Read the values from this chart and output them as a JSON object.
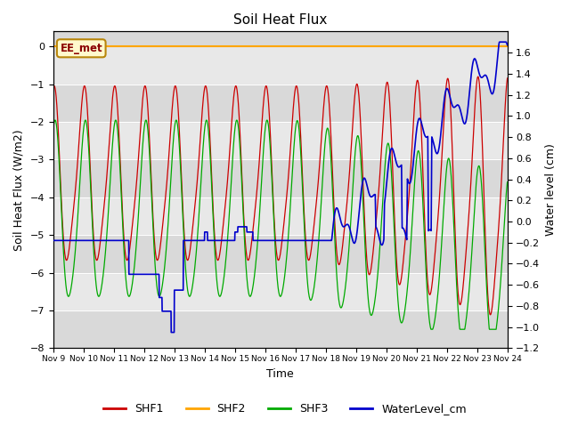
{
  "title": "Soil Heat Flux",
  "ylabel_left": "Soil Heat Flux (W/m2)",
  "ylabel_right": "Water level (cm)",
  "xlabel": "Time",
  "ylim_left": [
    -8.0,
    0.4
  ],
  "ylim_right": [
    -1.2,
    1.8
  ],
  "annotation_text": "EE_met",
  "background_color": "#ffffff",
  "plot_bg_color": "#e8e8e8",
  "shf2_color": "#ffa500",
  "shf1_color": "#cc0000",
  "shf3_color": "#00aa00",
  "water_color": "#0000cc",
  "legend_entries": [
    "SHF1",
    "SHF2",
    "SHF3",
    "WaterLevel_cm"
  ],
  "xtick_labels": [
    "Nov 9",
    "Nov 10",
    "Nov 11",
    "Nov 12",
    "Nov 13",
    "Nov 14",
    "Nov 15",
    "Nov 16",
    "Nov 17",
    "Nov 18",
    "Nov 19",
    "Nov 20",
    "Nov 21",
    "Nov 22",
    "Nov 23",
    "Nov 24"
  ],
  "yticks_left": [
    -8,
    -7,
    -6,
    -5,
    -4,
    -3,
    -2,
    -1,
    0
  ],
  "yticks_right": [
    -1.2,
    -1.0,
    -0.8,
    -0.6,
    -0.4,
    -0.2,
    0.0,
    0.2,
    0.4,
    0.6,
    0.8,
    1.0,
    1.2,
    1.4,
    1.6
  ]
}
